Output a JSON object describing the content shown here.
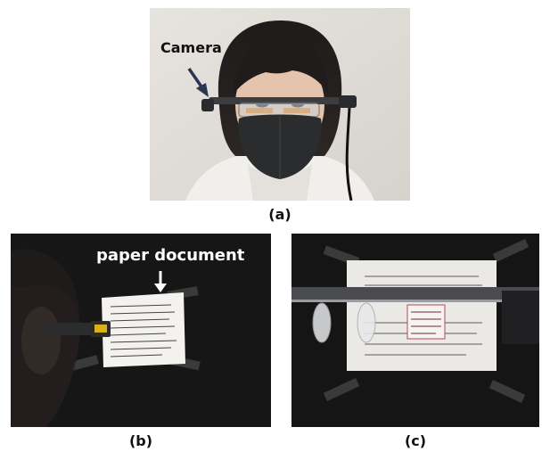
{
  "figure": {
    "panel_a": {
      "caption": "(a)",
      "annotation": "Camera",
      "scene": "person-wearing-smart-glasses-photo"
    },
    "panel_b": {
      "caption": "(b)",
      "annotation": "paper document",
      "scene": "side-view-glasses-facing-paper-photo"
    },
    "panel_c": {
      "caption": "(c)",
      "scene": "camera-view-through-glasses-photo"
    }
  },
  "colors": {
    "label_dark": "#111111",
    "label_light": "#ffffff",
    "background_dark": "#151515",
    "wall_light": "#e9e6e1"
  }
}
